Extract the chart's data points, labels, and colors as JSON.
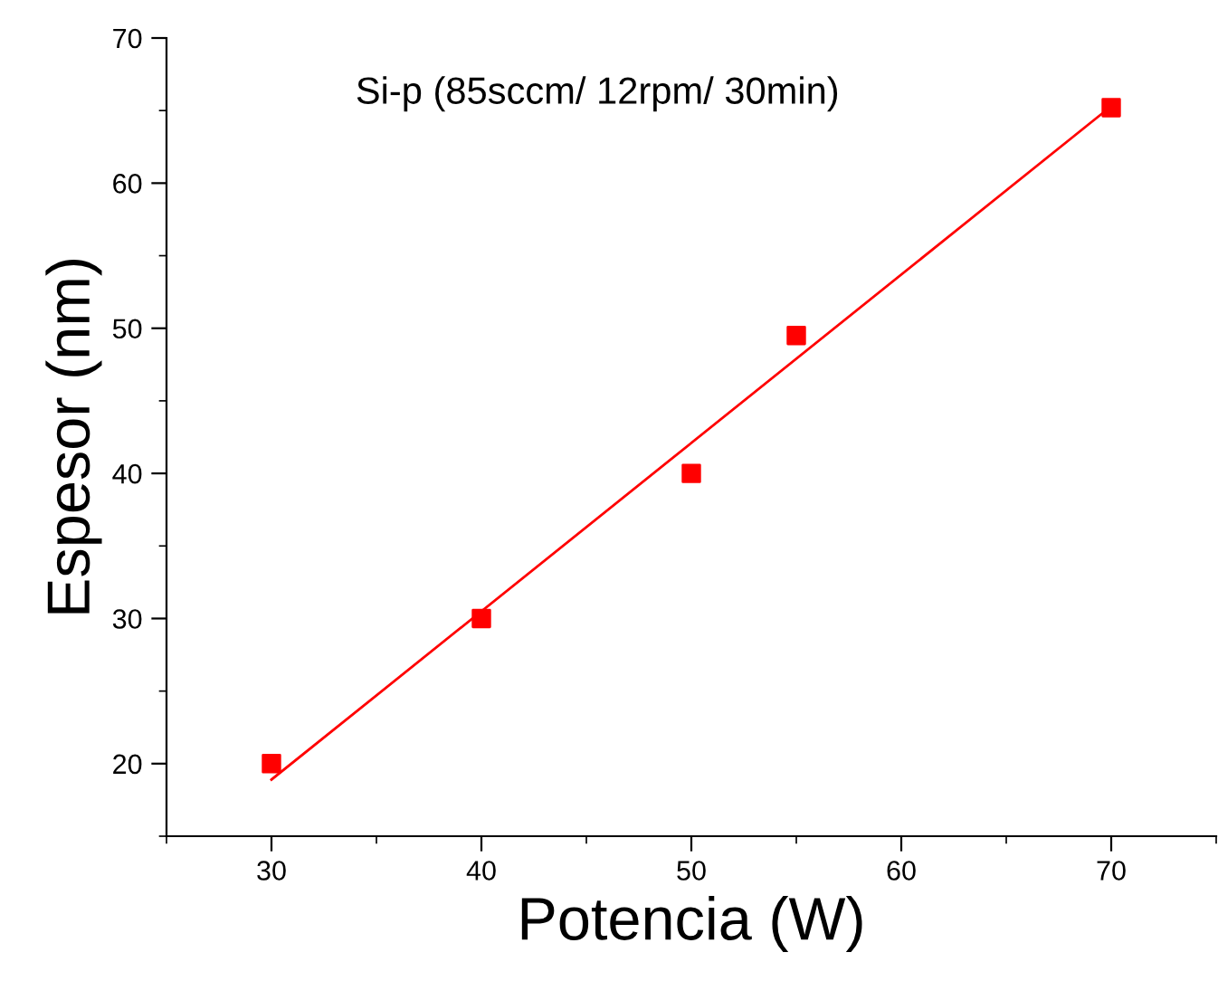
{
  "chart_data": {
    "type": "scatter",
    "xlabel": "Potencia (W)",
    "ylabel": "Espesor (nm)",
    "annotations": [
      "Si-p (85sccm/ 12rpm/ 30min)"
    ],
    "series": [
      {
        "color": "#ff0000",
        "marker": "square",
        "x": [
          30,
          40,
          50,
          55,
          70
        ],
        "values": [
          20,
          30,
          40,
          49.5,
          65.2
        ]
      },
      {
        "type": "line",
        "color": "#ff0000",
        "marker": "none",
        "x": [
          30,
          70
        ],
        "values": [
          18.9,
          65.3
        ]
      }
    ],
    "xlim": [
      25,
      75
    ],
    "ylim": [
      15,
      70
    ],
    "xticks": [
      30,
      40,
      50,
      60,
      70
    ],
    "yticks": [
      20,
      30,
      40,
      50,
      60,
      70
    ],
    "grid": false,
    "legend": false
  }
}
